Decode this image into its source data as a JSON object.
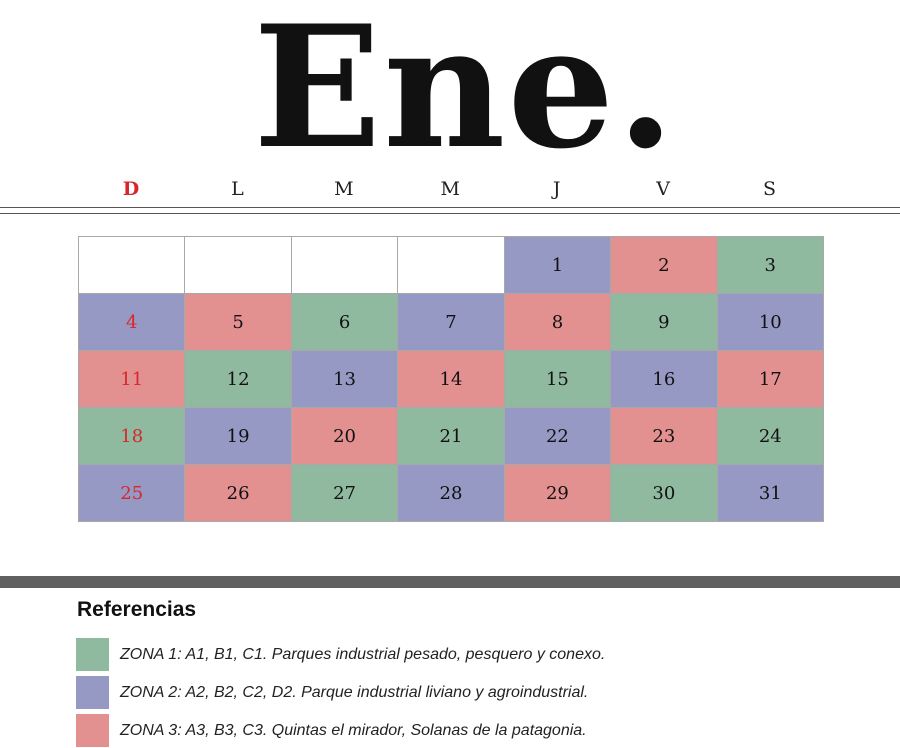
{
  "header": {
    "title": "Ene."
  },
  "weekdays": [
    "D",
    "L",
    "M",
    "M",
    "J",
    "V",
    "S"
  ],
  "weeks": [
    [
      null,
      null,
      null,
      null,
      {
        "day": "1",
        "color": "#9599c4"
      },
      {
        "day": "2",
        "color": "#e39091"
      },
      {
        "day": "3",
        "color": "#8fbaa0"
      }
    ],
    [
      {
        "day": "4",
        "color": "#9599c4"
      },
      {
        "day": "5",
        "color": "#e39091"
      },
      {
        "day": "6",
        "color": "#8fbaa0"
      },
      {
        "day": "7",
        "color": "#9599c4"
      },
      {
        "day": "8",
        "color": "#e39091"
      },
      {
        "day": "9",
        "color": "#8fbaa0"
      },
      {
        "day": "10",
        "color": "#9599c4"
      }
    ],
    [
      {
        "day": "11",
        "color": "#e39091"
      },
      {
        "day": "12",
        "color": "#8fbaa0"
      },
      {
        "day": "13",
        "color": "#9599c4"
      },
      {
        "day": "14",
        "color": "#e39091"
      },
      {
        "day": "15",
        "color": "#8fbaa0"
      },
      {
        "day": "16",
        "color": "#9599c4"
      },
      {
        "day": "17",
        "color": "#e39091"
      }
    ],
    [
      {
        "day": "18",
        "color": "#8fbaa0"
      },
      {
        "day": "19",
        "color": "#9599c4"
      },
      {
        "day": "20",
        "color": "#e39091"
      },
      {
        "day": "21",
        "color": "#8fbaa0"
      },
      {
        "day": "22",
        "color": "#9599c4"
      },
      {
        "day": "23",
        "color": "#e39091"
      },
      {
        "day": "24",
        "color": "#8fbaa0"
      }
    ],
    [
      {
        "day": "25",
        "color": "#9599c4"
      },
      {
        "day": "26",
        "color": "#e39091"
      },
      {
        "day": "27",
        "color": "#8fbaa0"
      },
      {
        "day": "28",
        "color": "#9599c4"
      },
      {
        "day": "29",
        "color": "#e39091"
      },
      {
        "day": "30",
        "color": "#8fbaa0"
      },
      {
        "day": "31",
        "color": "#9599c4"
      }
    ]
  ],
  "references": {
    "title": "Referencias",
    "items": [
      {
        "color": "#8fbaa0",
        "label": "ZONA 1: A1, B1, C1. Parques industrial pesado, pesquero y conexo."
      },
      {
        "color": "#9599c4",
        "label": "ZONA 2: A2, B2, C2, D2. Parque industrial liviano y agroindustrial."
      },
      {
        "color": "#e39091",
        "label": "ZONA 3: A3, B3, C3. Quintas el mirador, Solanas de la patagonia."
      }
    ]
  }
}
